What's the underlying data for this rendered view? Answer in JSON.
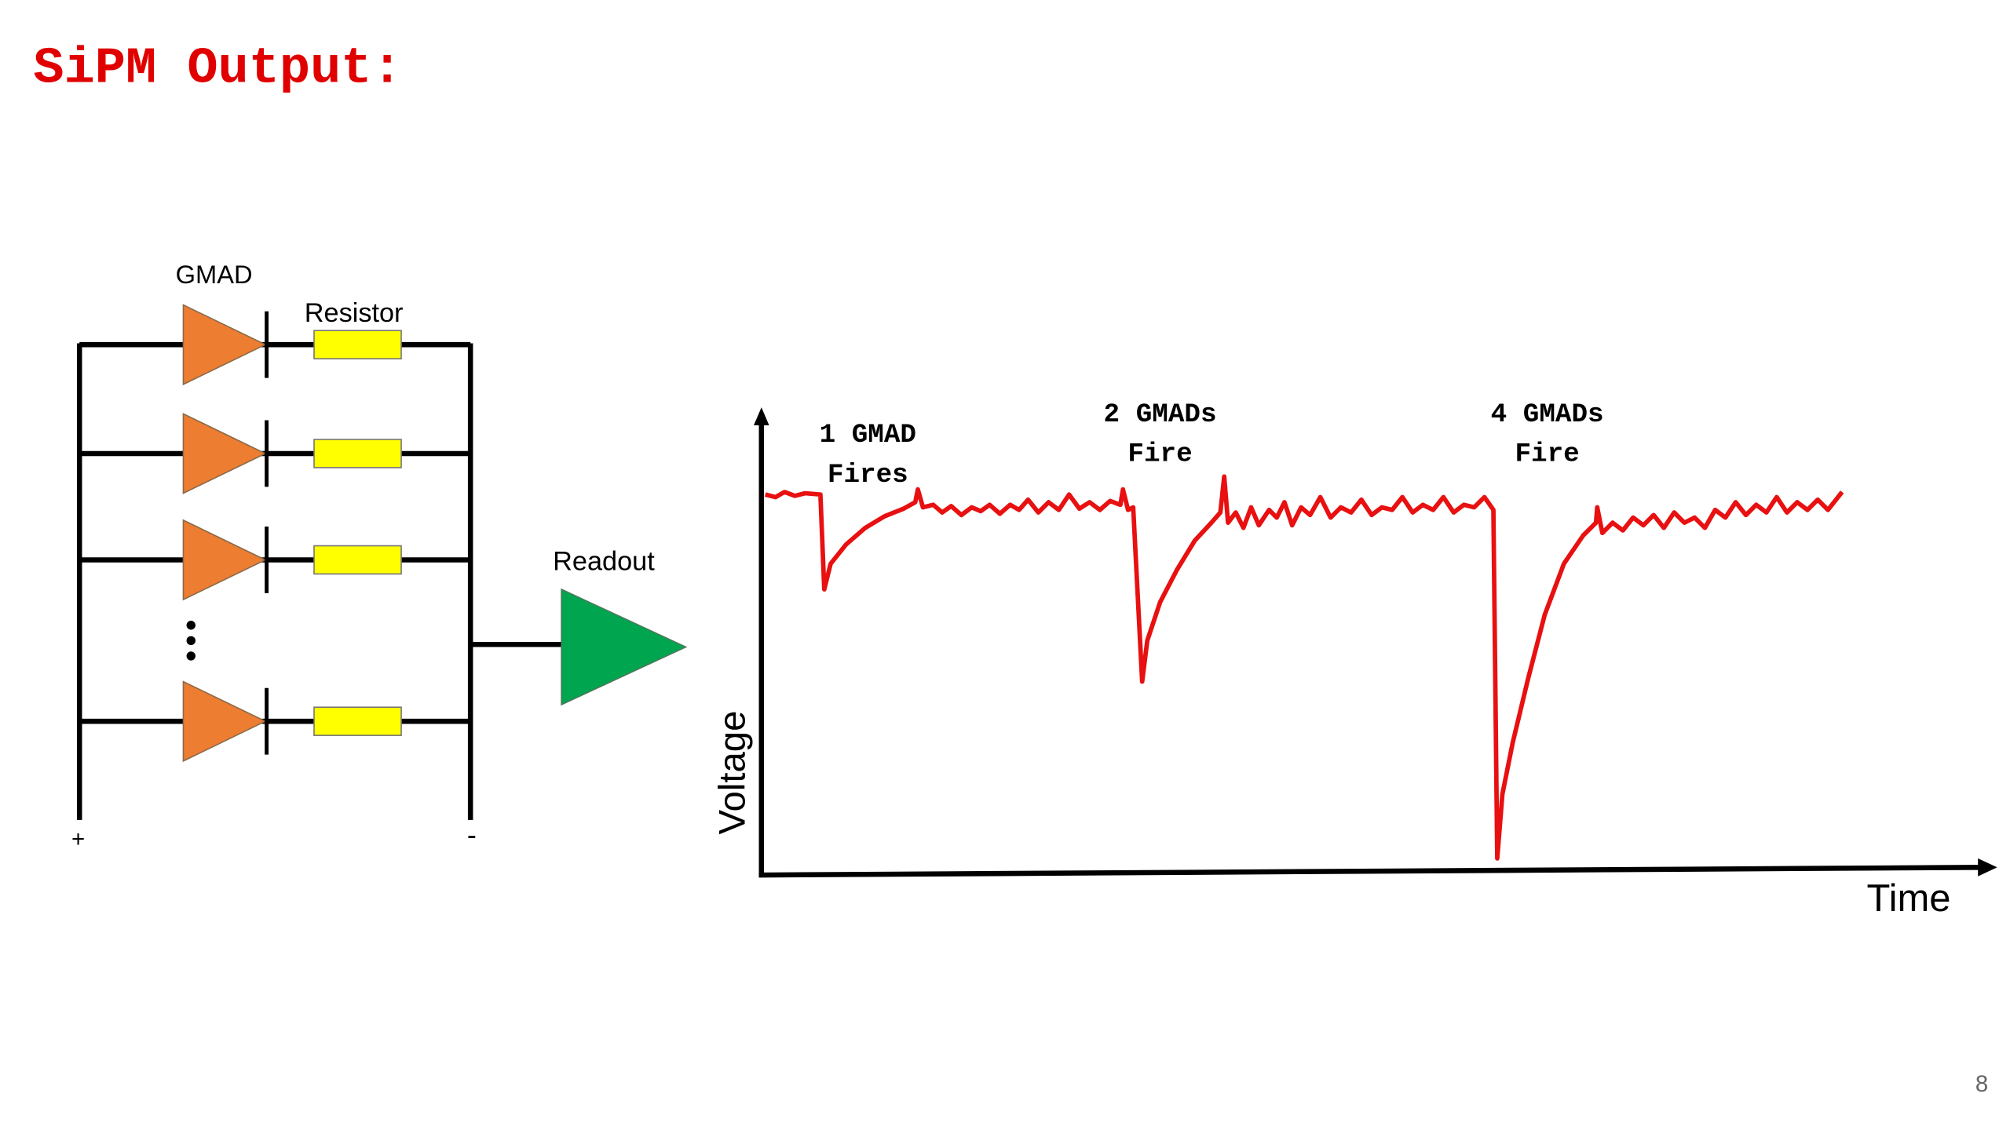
{
  "header": {
    "title": "SiPM Output:"
  },
  "circuit": {
    "diode_label": "GMAD",
    "resistor_label": "Resistor",
    "readout_label": "Readout",
    "plus": "+",
    "minus": "-"
  },
  "plot": {
    "y_label": "Voltage",
    "x_label": "Time",
    "annotations": [
      [
        "1 GMAD",
        "Fires"
      ],
      [
        "2 GMADs",
        "Fire"
      ],
      [
        "4 GMADs",
        "Fire"
      ]
    ]
  },
  "footer": {
    "page_number": "8"
  }
}
